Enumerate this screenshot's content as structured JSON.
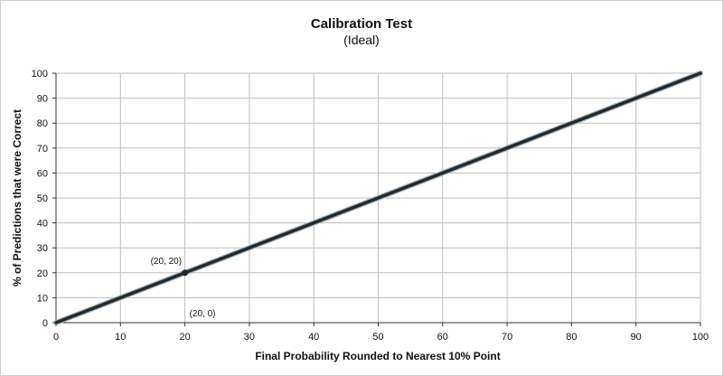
{
  "chart_data": {
    "type": "line",
    "title": "Calibration Test",
    "subtitle": "(Ideal)",
    "xlabel": "Final Probability Rounded to Nearest 10% Point",
    "ylabel": "% of Predictions that were Correct",
    "xlim": [
      0,
      100
    ],
    "ylim": [
      0,
      100
    ],
    "x_ticks": [
      0,
      10,
      20,
      30,
      40,
      50,
      60,
      70,
      80,
      90,
      100
    ],
    "y_ticks": [
      0,
      10,
      20,
      30,
      40,
      50,
      60,
      70,
      80,
      90,
      100
    ],
    "grid": true,
    "series": [
      {
        "x": [
          0,
          100
        ],
        "y": [
          0,
          100
        ],
        "color": "#1f2a30"
      }
    ],
    "markers": [
      {
        "x": 20,
        "y": 20
      }
    ],
    "annotations": [
      {
        "text": "(20, 20)",
        "x": 20,
        "y": 20
      },
      {
        "text": "(20, 0)",
        "x": 20,
        "y": 0
      }
    ]
  }
}
